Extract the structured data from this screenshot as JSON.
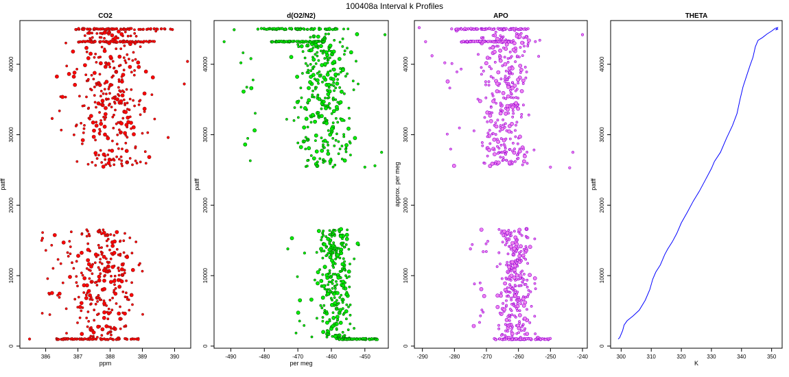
{
  "suptitle": "100408a   Interval k Profiles",
  "chart_data": [
    {
      "type": "scatter",
      "title": "CO2",
      "xlabel": "ppm",
      "ylabel": "patff",
      "xlim": [
        385.2,
        390.5
      ],
      "ylim": [
        -300,
        46200
      ],
      "xticks": [
        386,
        387,
        388,
        389,
        390
      ],
      "yticks": [
        0,
        10000,
        20000,
        30000,
        40000
      ],
      "fill": "#ff0000",
      "stroke": "#8b1a1a",
      "series": {
        "segments": [
          {
            "y0": 1000,
            "y1": 16700,
            "x_center": 387.8,
            "x_spread": 0.55,
            "n": 280,
            "tail": 386.2
          },
          {
            "y0": 25400,
            "y1": 45200,
            "x_center": 388.1,
            "x_spread": 0.6,
            "n": 320,
            "tail": 386.5
          }
        ],
        "bands": [
          {
            "y": 1000,
            "x0": 386.3,
            "x1": 388.9
          },
          {
            "y": 43200,
            "x0": 387.0,
            "x1": 389.4
          },
          {
            "y": 45000,
            "x0": 386.9,
            "x1": 390.0
          }
        ],
        "outliers": [
          [
            385.5,
            1000
          ],
          [
            385.9,
            15300
          ],
          [
            386.1,
            7500
          ],
          [
            390.3,
            37200
          ],
          [
            390.4,
            40400
          ],
          [
            386.2,
            32300
          ],
          [
            389.8,
            29600
          ]
        ]
      }
    },
    {
      "type": "scatter",
      "title": "d(O2/N2)",
      "xlabel": "per meg",
      "ylabel": "patff",
      "xlim": [
        -495,
        -443
      ],
      "ylim": [
        -300,
        46200
      ],
      "xticks": [
        -490,
        -480,
        -470,
        -460,
        -450
      ],
      "yticks": [
        0,
        10000,
        20000,
        30000,
        40000
      ],
      "fill": "#00ee00",
      "stroke": "#006400",
      "series": {
        "segments": [
          {
            "y0": 1000,
            "y1": 16700,
            "x_center": -459,
            "x_spread": 2.8,
            "n": 280,
            "tail": -470
          },
          {
            "y0": 25400,
            "y1": 45200,
            "x_center": -462,
            "x_spread": 4.5,
            "n": 320,
            "tail": -485
          }
        ],
        "bands": [
          {
            "y": 1000,
            "x0": -458,
            "x1": -446
          },
          {
            "y": 43200,
            "x0": -478,
            "x1": -462
          },
          {
            "y": 45000,
            "x0": -482,
            "x1": -458
          }
        ],
        "outliers": [
          [
            -492,
            43200
          ],
          [
            -489,
            44900
          ],
          [
            -487,
            40200
          ],
          [
            -484,
            40800
          ],
          [
            -450,
            25400
          ],
          [
            -447,
            25600
          ],
          [
            -445,
            27500
          ],
          [
            -444,
            44200
          ],
          [
            -473,
            13800
          ],
          [
            -468,
            13200
          ]
        ]
      }
    },
    {
      "type": "scatter",
      "title": "APO",
      "xlabel": "",
      "ylabel": "approx. per meg",
      "xlim": [
        -292.5,
        -238.5
      ],
      "ylim": [
        -300,
        46200
      ],
      "xticks": [
        -290,
        -280,
        -270,
        -260,
        -250,
        -240
      ],
      "yticks": [
        0,
        10000,
        20000,
        30000,
        40000
      ],
      "fill": "#ee82ee",
      "stroke": "#9400d3",
      "series": {
        "segments": [
          {
            "y0": 1000,
            "y1": 16700,
            "x_center": -261,
            "x_spread": 3.0,
            "n": 280,
            "tail": -272
          },
          {
            "y0": 25400,
            "y1": 45200,
            "x_center": -264,
            "x_spread": 4.5,
            "n": 320,
            "tail": -280
          }
        ],
        "bands": [
          {
            "y": 1000,
            "x0": -268,
            "x1": -250
          },
          {
            "y": 43200,
            "x0": -278,
            "x1": -262
          },
          {
            "y": 45000,
            "x0": -281,
            "x1": -257
          }
        ],
        "outliers": [
          [
            -291,
            45200
          ],
          [
            -289,
            43200
          ],
          [
            -287,
            41200
          ],
          [
            -283,
            40200
          ],
          [
            -250,
            25400
          ],
          [
            -244,
            25300
          ],
          [
            -243,
            27500
          ],
          [
            -240,
            44200
          ],
          [
            -275,
            13800
          ],
          [
            -271,
            13400
          ]
        ]
      }
    },
    {
      "type": "line",
      "title": "THETA",
      "xlabel": "K",
      "ylabel": "patff",
      "xlim": [
        296.5,
        353.5
      ],
      "ylim": [
        -300,
        46200
      ],
      "xticks": [
        300,
        310,
        320,
        330,
        340,
        350
      ],
      "yticks": [
        0,
        10000,
        20000,
        30000,
        40000
      ],
      "color": "#0000ff",
      "points": [
        [
          299,
          1000
        ],
        [
          299.5,
          1200
        ],
        [
          300.5,
          2200
        ],
        [
          301,
          3000
        ],
        [
          302,
          3600
        ],
        [
          304,
          4300
        ],
        [
          306,
          5100
        ],
        [
          308,
          6500
        ],
        [
          309.5,
          8000
        ],
        [
          310.5,
          9500
        ],
        [
          311.5,
          10500
        ],
        [
          313,
          11500
        ],
        [
          314.5,
          13000
        ],
        [
          315.5,
          13800
        ],
        [
          317,
          14800
        ],
        [
          318.5,
          16000
        ],
        [
          320,
          17500
        ],
        [
          322,
          19000
        ],
        [
          324,
          20600
        ],
        [
          326,
          22000
        ],
        [
          328,
          23600
        ],
        [
          330,
          25200
        ],
        [
          331,
          26200
        ],
        [
          333,
          27500
        ],
        [
          335,
          29500
        ],
        [
          337,
          31300
        ],
        [
          338.5,
          33000
        ],
        [
          339.5,
          35000
        ],
        [
          340.5,
          36800
        ],
        [
          341.8,
          38500
        ],
        [
          342.8,
          39800
        ],
        [
          343.8,
          41000
        ],
        [
          344.6,
          42500
        ],
        [
          345.5,
          43400
        ],
        [
          347,
          43800
        ],
        [
          348.5,
          44300
        ],
        [
          350,
          44700
        ],
        [
          351.2,
          45100
        ],
        [
          352,
          45200
        ],
        [
          351.5,
          44900
        ],
        [
          352.2,
          45000
        ]
      ]
    }
  ]
}
